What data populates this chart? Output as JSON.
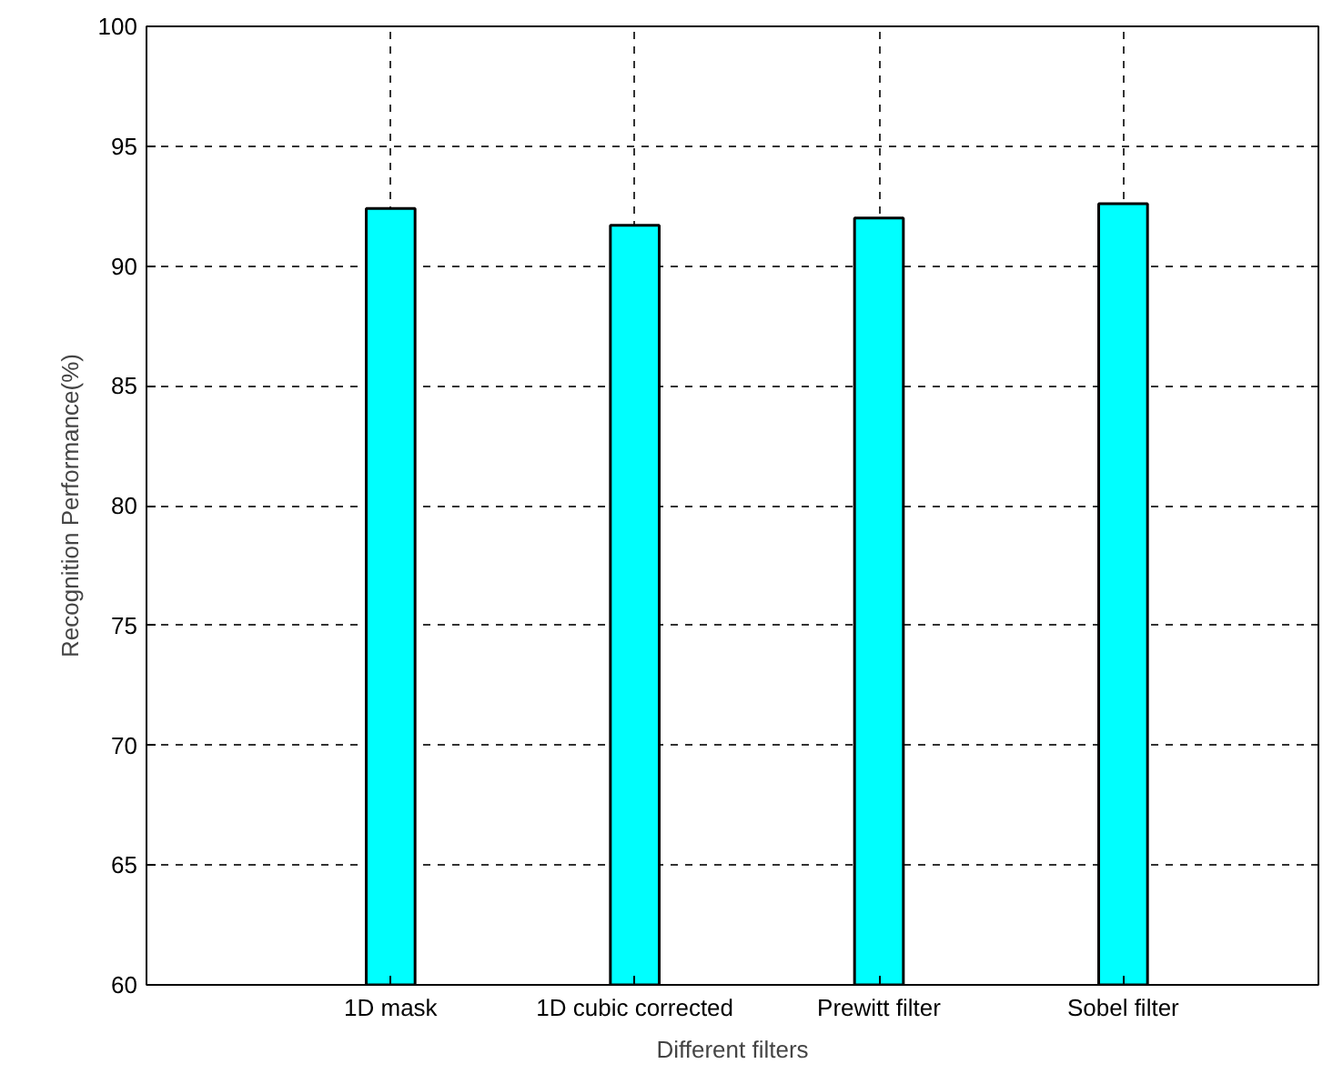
{
  "chart_data": {
    "type": "bar",
    "xlabel": "Different filters",
    "ylabel": "Recognition Performance(%)",
    "categories": [
      "1D mask",
      "1D cubic corrected",
      "Prewitt filter",
      "Sobel filter"
    ],
    "values": [
      92.4,
      91.7,
      92.0,
      92.6
    ],
    "color": "#00ffff",
    "ylim": [
      60,
      100
    ],
    "yticks": [
      60,
      65,
      70,
      75,
      80,
      85,
      90,
      95,
      100
    ],
    "grid": true
  }
}
